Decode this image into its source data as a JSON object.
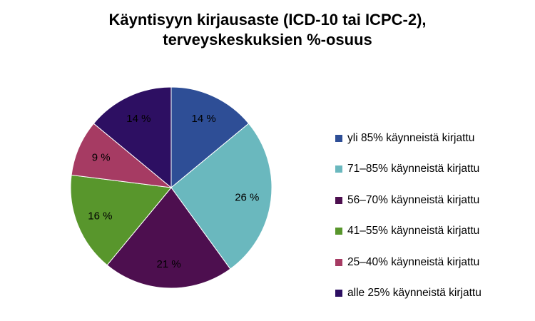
{
  "chart_data": {
    "type": "pie",
    "title_line1": "Käyntisyyn kirjausaste (ICD-10 tai ICPC-2),",
    "title_line2": "terveyskeskuksien %-osuus",
    "slices": [
      {
        "name": "yli 85% käynneistä kirjattu",
        "value": 14,
        "label": "14 %",
        "color": "#2e4e96"
      },
      {
        "name": "71–85% käynneistä kirjattu",
        "value": 26,
        "label": "26 %",
        "color": "#6ab8be"
      },
      {
        "name": "56–70% käynneistä kirjattu",
        "value": 21,
        "label": "21 %",
        "color": "#4d0f4f"
      },
      {
        "name": "41–55% käynneistä kirjattu",
        "value": 16,
        "label": "16 %",
        "color": "#58962c"
      },
      {
        "name": "25–40% käynneistä kirjattu",
        "value": 9,
        "label": "9 %",
        "color": "#a63b63"
      },
      {
        "name": "alle 25% käynneistä kirjattu",
        "value": 14,
        "label": "14 %",
        "color": "#2d0f62"
      }
    ],
    "legend_position": "right"
  }
}
